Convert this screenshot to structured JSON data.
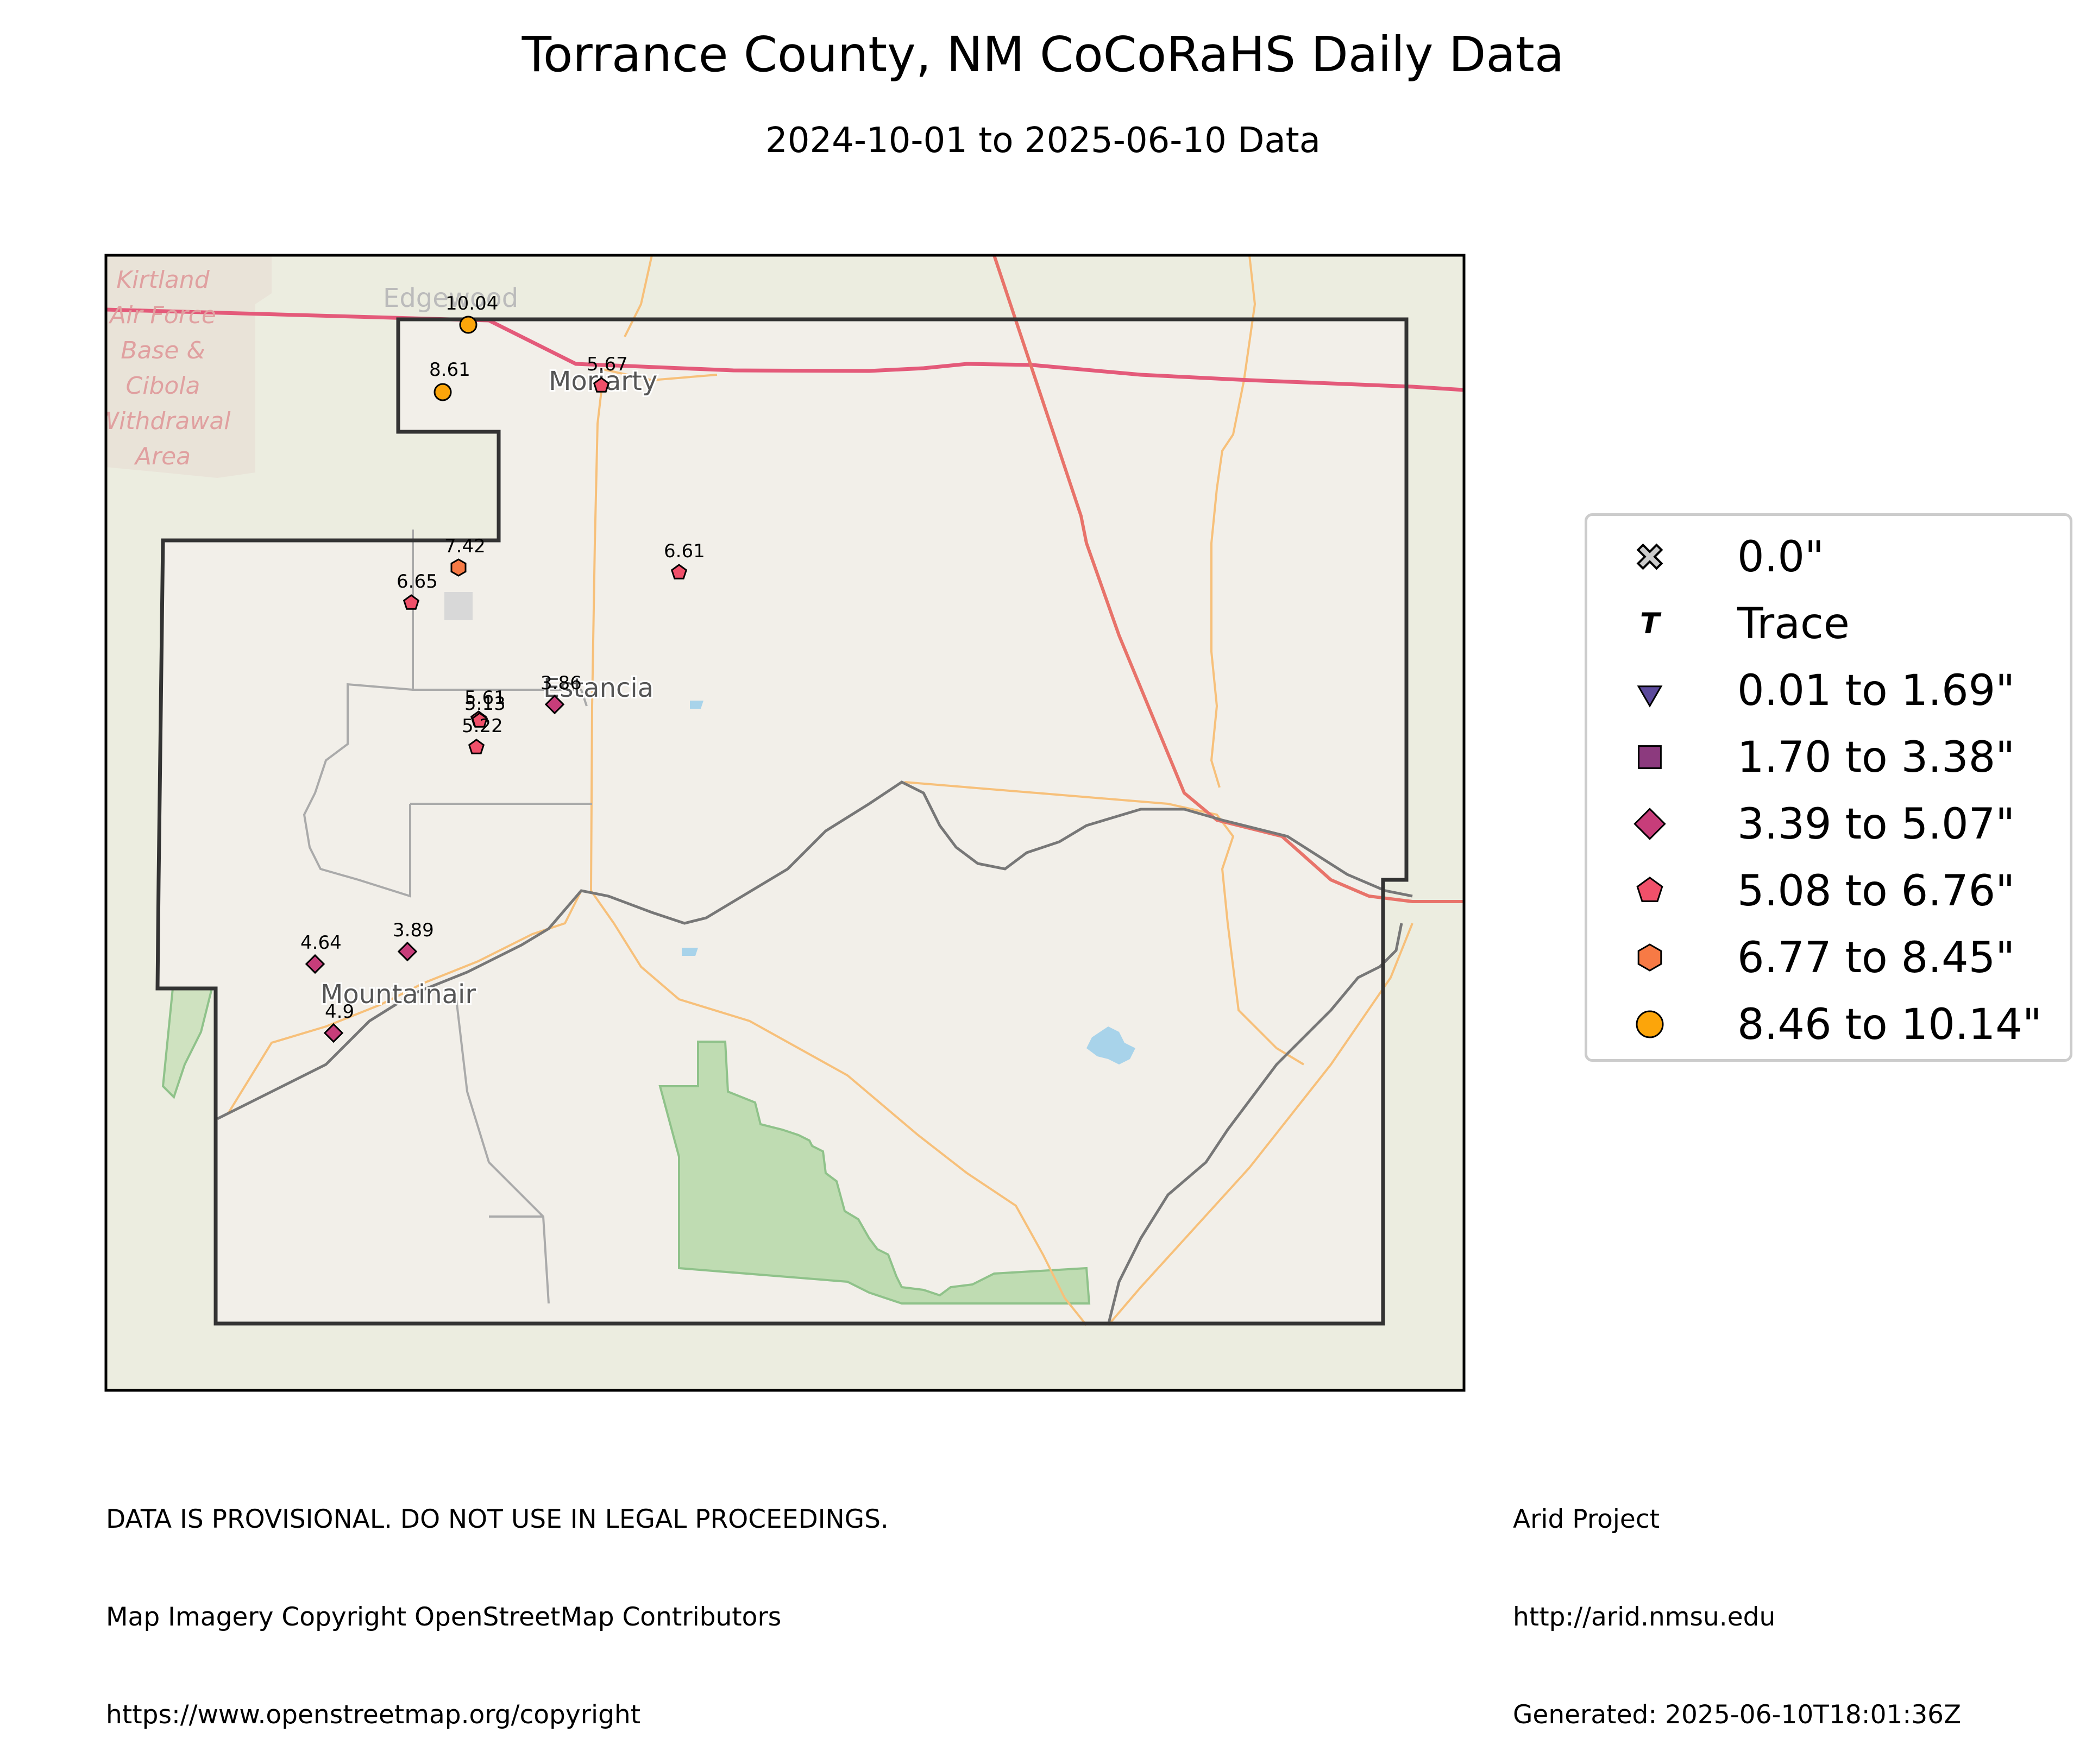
{
  "title": "Torrance County, NM CoCoRaHS Daily Data",
  "subtitle": "2024-10-01 to 2025-06-10 Data",
  "map_labels": {
    "kirtland": [
      "Kirtland",
      "Air Force",
      "Base &",
      "Cibola",
      "Withdrawal",
      "Area"
    ],
    "edgewood": "Edgewood",
    "moriarty": "Moriarty",
    "estancia": "Estancia",
    "mountainair": "Mountainair"
  },
  "colors": {
    "cat_0": "#cccccc",
    "cat_trace": "#000000",
    "cat_1": "#5c4a9c",
    "cat_2": "#8c3a7e",
    "cat_3": "#c73d7a",
    "cat_4": "#f0506a",
    "cat_5": "#f77a45",
    "cat_6": "#fca50a",
    "map_bg": "#ecede0",
    "county_bg": "#f2efe9",
    "forest": "#bfdcb2",
    "highway": "#e45a7a",
    "road": "#f7c07a",
    "rail": "#777777"
  },
  "legend": [
    {
      "label": "0.0\"",
      "symbol": "cross",
      "color_key": "cat_0"
    },
    {
      "label": "Trace",
      "symbol": "T",
      "color_key": "cat_trace"
    },
    {
      "label": "0.01 to 1.69\"",
      "symbol": "triangle",
      "color_key": "cat_1"
    },
    {
      "label": "1.70 to 3.38\"",
      "symbol": "square",
      "color_key": "cat_2"
    },
    {
      "label": "3.39 to 5.07\"",
      "symbol": "diamond",
      "color_key": "cat_3"
    },
    {
      "label": "5.08 to 6.76\"",
      "symbol": "pentagon",
      "color_key": "cat_4"
    },
    {
      "label": "6.77 to 8.45\"",
      "symbol": "hexagon",
      "color_key": "cat_5"
    },
    {
      "label": "8.46 to 10.14\"",
      "symbol": "circle",
      "color_key": "cat_6"
    }
  ],
  "stations": [
    {
      "value": "10.04",
      "category": 6
    },
    {
      "value": "8.61",
      "category": 6
    },
    {
      "value": "5.67",
      "category": 4
    },
    {
      "value": "7.42",
      "category": 5
    },
    {
      "value": "6.61",
      "category": 4
    },
    {
      "value": "6.65",
      "category": 4
    },
    {
      "value": "3.86",
      "category": 3
    },
    {
      "value": "5.61",
      "category": 4
    },
    {
      "value": "5.13",
      "category": 4
    },
    {
      "value": "5.22",
      "category": 4
    },
    {
      "value": "4.64",
      "category": 3
    },
    {
      "value": "3.89",
      "category": 3
    },
    {
      "value": "4.9",
      "category": 3
    }
  ],
  "footer_left": [
    "DATA IS PROVISIONAL. DO NOT USE IN LEGAL PROCEEDINGS.",
    "Map Imagery Copyright OpenStreetMap Contributors",
    "https://www.openstreetmap.org/copyright"
  ],
  "footer_right": [
    "Arid Project",
    "http://arid.nmsu.edu",
    "Generated: 2025-06-10T18:01:36Z"
  ]
}
